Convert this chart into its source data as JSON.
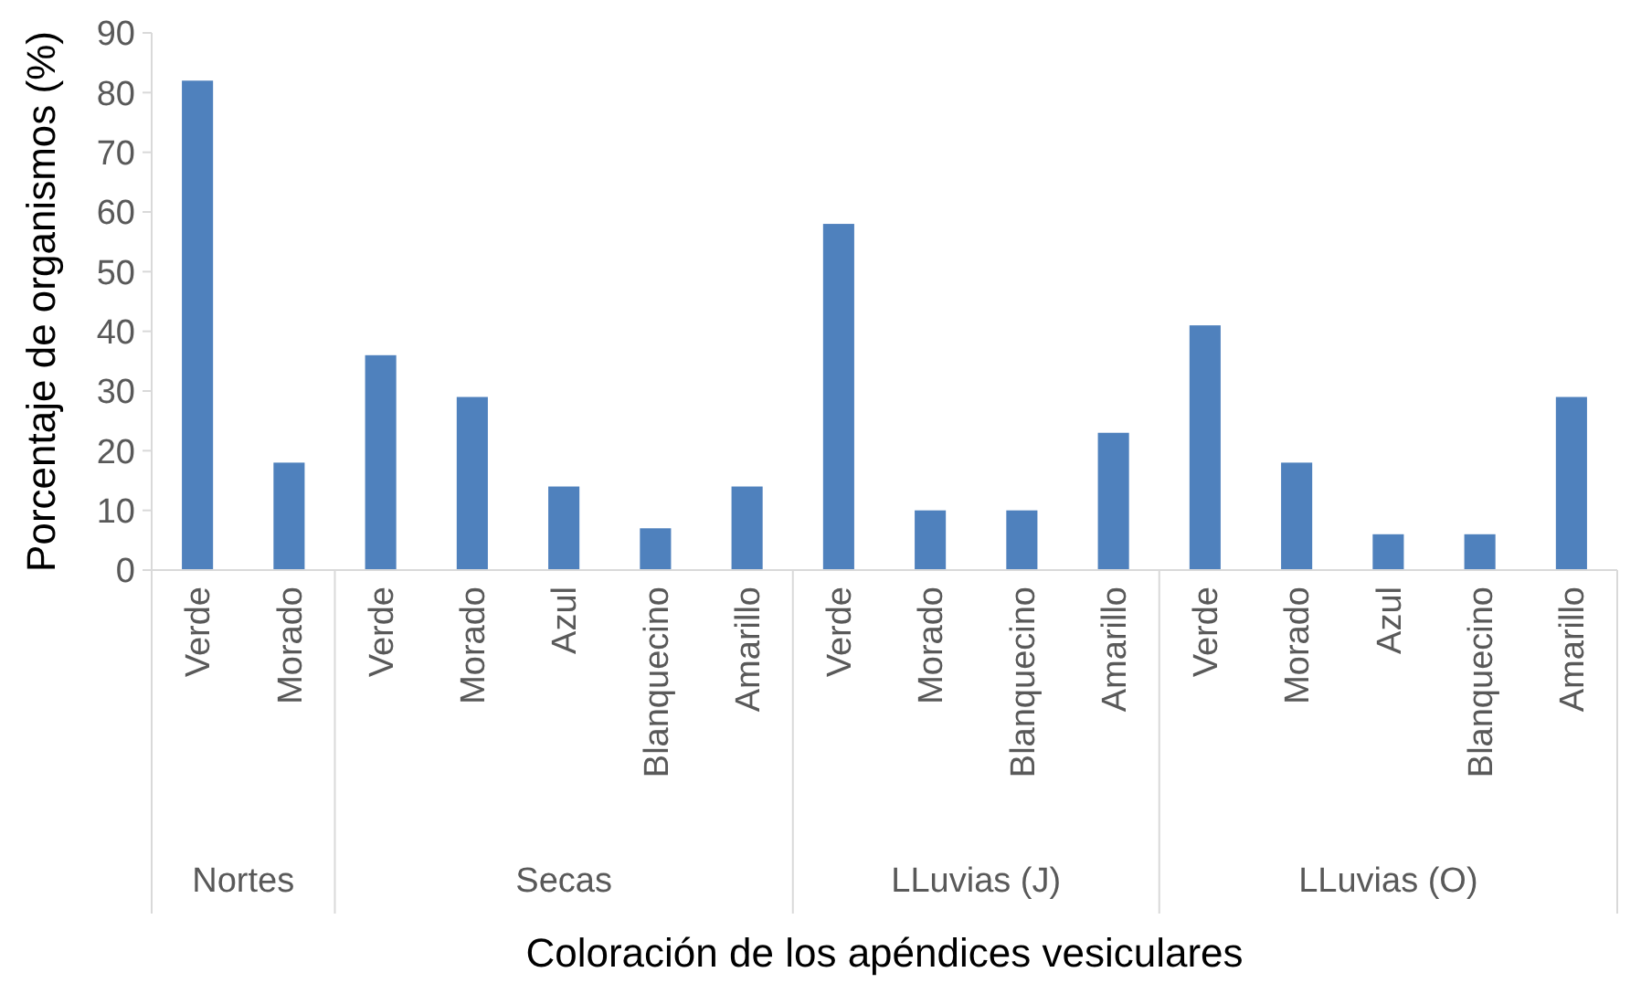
{
  "chart_data": {
    "type": "bar",
    "xlabel": "Coloración de los apéndices vesiculares",
    "ylabel": "Porcentaje de organismos (%)",
    "categories": [
      "Verde",
      "Morado",
      "Verde",
      "Morado",
      "Azul",
      "Blanquecino",
      "Amarillo",
      "Verde",
      "Morado",
      "Blanquecino",
      "Amarillo",
      "Verde",
      "Morado",
      "Azul",
      "Blanquecino",
      "Amarillo"
    ],
    "values": [
      82,
      18,
      36,
      29,
      14,
      7,
      14,
      58,
      10,
      10,
      23,
      41,
      18,
      6,
      6,
      29
    ],
    "color": "#4f81bd",
    "ylim": [
      0,
      90
    ],
    "yticks": [
      0,
      10,
      20,
      30,
      40,
      50,
      60,
      70,
      80,
      90
    ],
    "annotations": [
      "Nortes",
      "Secas",
      "LLuvias (J)",
      "LLuvias (O)"
    ]
  }
}
